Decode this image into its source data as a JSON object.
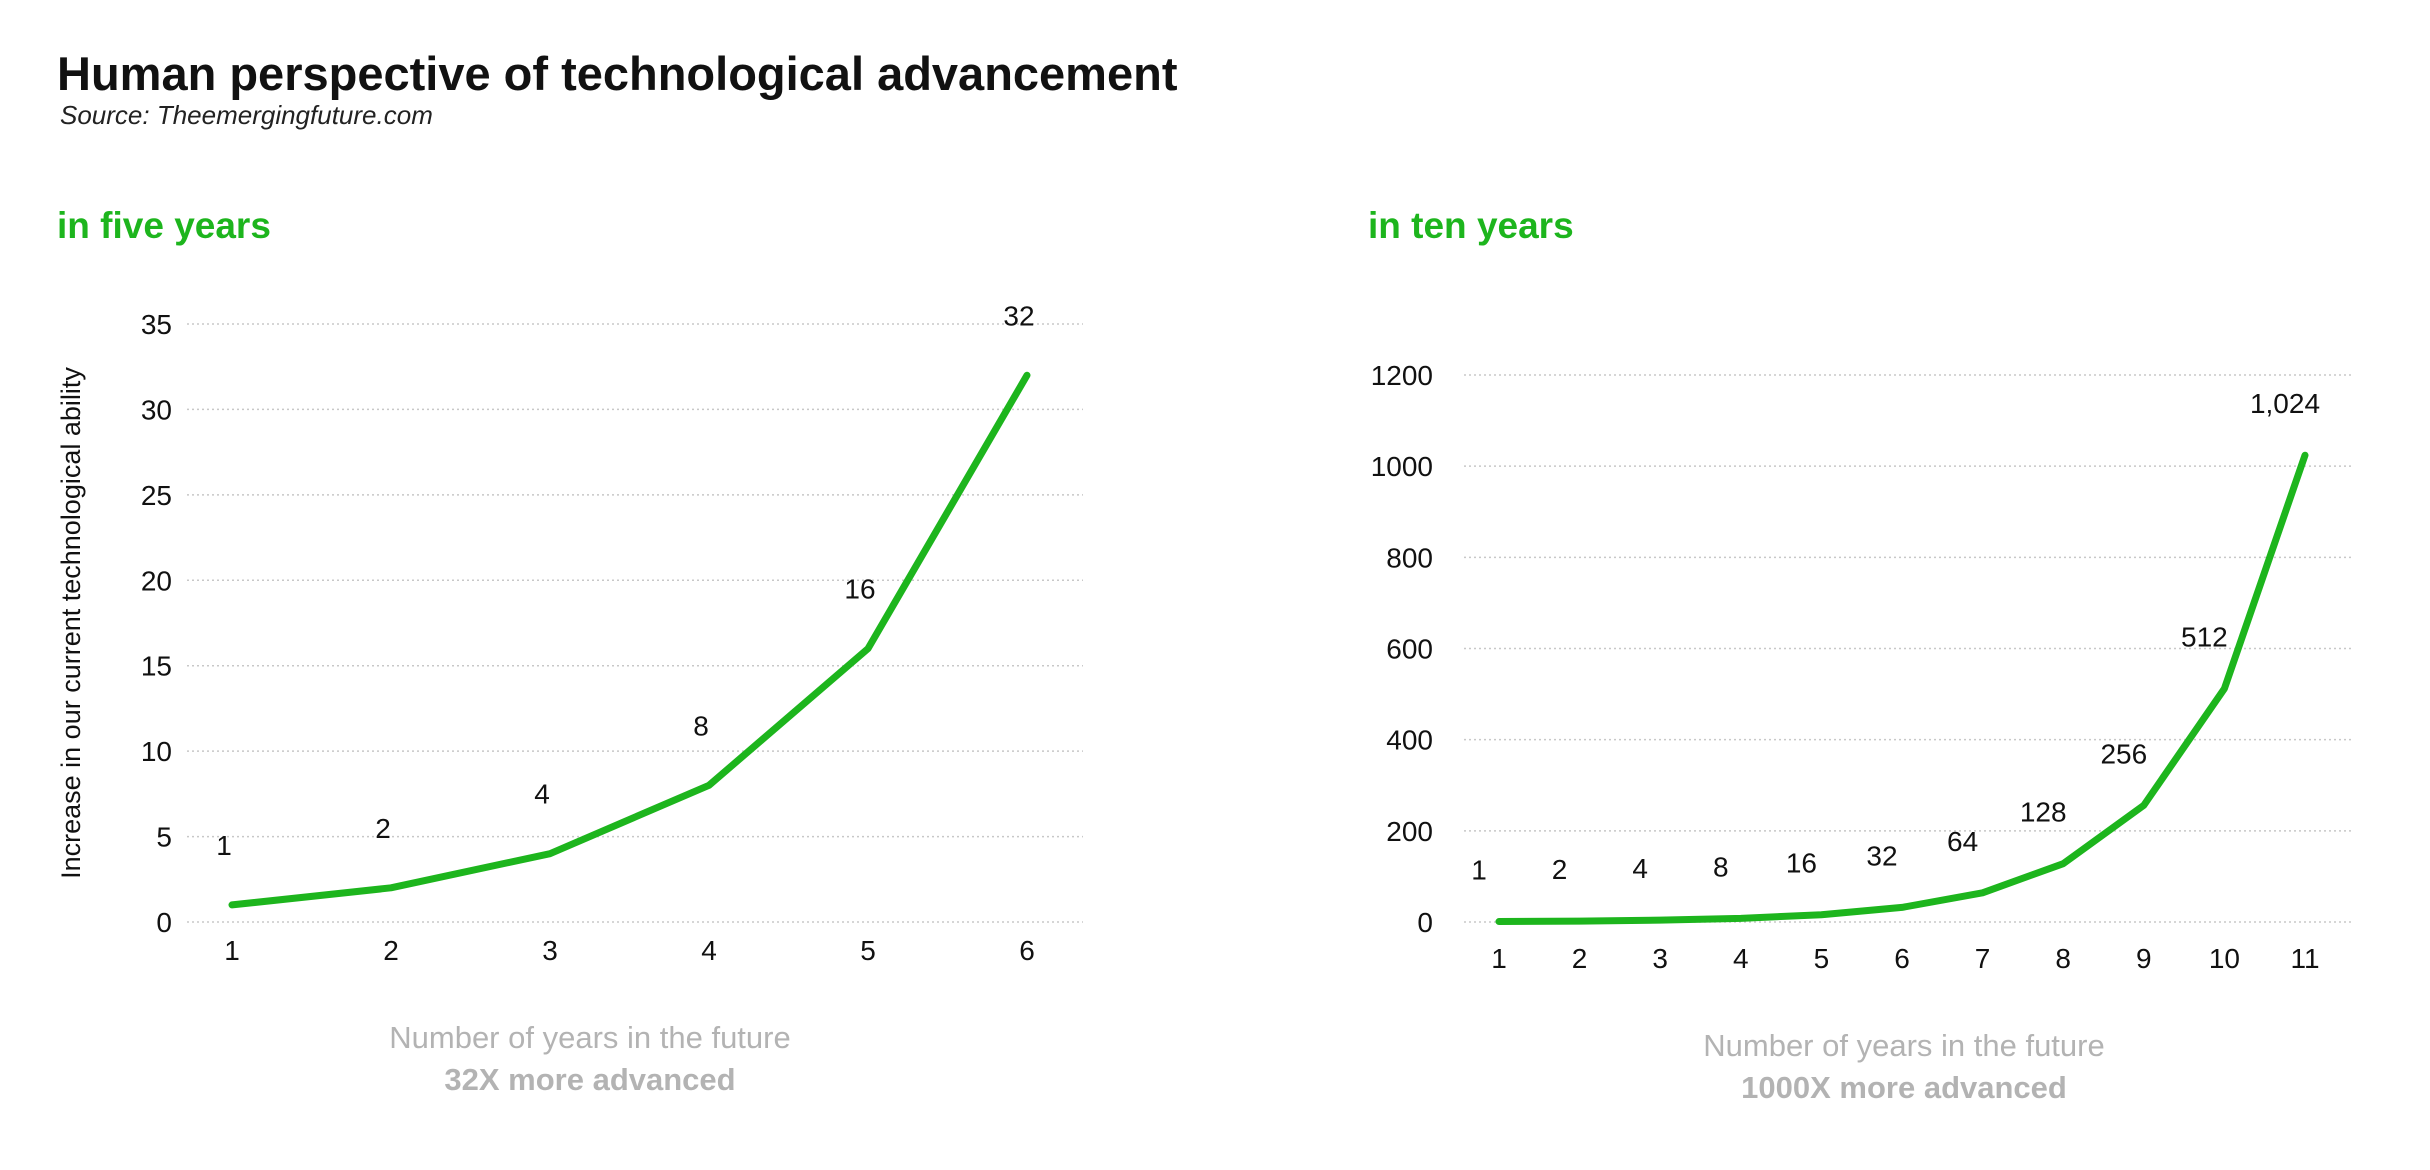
{
  "title": "Human perspective of technological advancement",
  "source": "Source: Theemergingfuture.com",
  "colors": {
    "line": "#1db51d",
    "highlight": "#1db51d",
    "grid": "#c8c8c8",
    "axis_title": "#b3b3b3"
  },
  "chart_data": [
    {
      "type": "line",
      "title": "in five years",
      "ylabel": "Increase in our current technological ability",
      "xlabel": "Number of years in the future",
      "xlabel_sub": "32X more advanced",
      "x": [
        1,
        2,
        3,
        4,
        5,
        6
      ],
      "values": [
        1,
        2,
        4,
        8,
        16,
        32
      ],
      "data_labels": [
        "1",
        "2",
        "4",
        "8",
        "16",
        "32"
      ],
      "highlight_labels": [
        "32"
      ],
      "xticks": [
        "1",
        "2",
        "3",
        "4",
        "5",
        "6"
      ],
      "yticks": [
        0,
        5,
        10,
        15,
        20,
        25,
        30,
        35
      ],
      "ytick_labels": [
        "0",
        "5",
        "10",
        "15",
        "20",
        "25",
        "30",
        "35"
      ],
      "ylim": [
        0,
        35
      ],
      "xlim": [
        1,
        6
      ],
      "grid": "horizontal dotted"
    },
    {
      "type": "line",
      "title": "in ten years",
      "xlabel": "Number of years in the future",
      "xlabel_sub": "1000X more advanced",
      "x": [
        1,
        2,
        3,
        4,
        5,
        6,
        7,
        8,
        9,
        10,
        11
      ],
      "values": [
        1,
        2,
        4,
        8,
        16,
        32,
        64,
        128,
        256,
        512,
        1024
      ],
      "data_labels": [
        "1",
        "2",
        "4",
        "8",
        "16",
        "32",
        "64",
        "128",
        "256",
        "512",
        "1,024"
      ],
      "highlight_labels": [
        "32",
        "1,024"
      ],
      "xticks": [
        "1",
        "2",
        "3",
        "4",
        "5",
        "6",
        "7",
        "8",
        "9",
        "10",
        "11"
      ],
      "yticks": [
        0,
        200,
        400,
        600,
        800,
        1000,
        1200
      ],
      "ytick_labels": [
        "0",
        "200",
        "400",
        "600",
        "800",
        "1000",
        "1200"
      ],
      "ylim": [
        0,
        1200
      ],
      "xlim": [
        1,
        11
      ],
      "grid": "horizontal dotted"
    }
  ]
}
